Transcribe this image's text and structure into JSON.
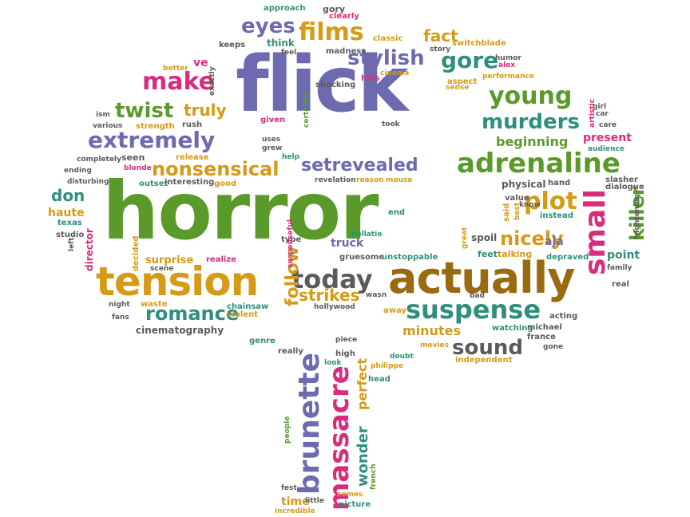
{
  "palette": {
    "purple": "#6e6ab0",
    "green": "#5a9a2a",
    "gold": "#d59a16",
    "magenta": "#d82c7d",
    "teal": "#2f8f7c",
    "gray": "#5a5a5a",
    "brown": "#9a6a10"
  },
  "words": [
    {
      "text": "flick",
      "color": "purple"
    },
    {
      "text": "horror",
      "color": "green"
    },
    {
      "text": "tension",
      "color": "gold"
    },
    {
      "text": "actually",
      "color": "brown"
    },
    {
      "text": "suspense",
      "color": "teal"
    },
    {
      "text": "adrenaline",
      "color": "green"
    },
    {
      "text": "extremely",
      "color": "purple"
    },
    {
      "text": "nonsensical",
      "color": "gold"
    },
    {
      "text": "setrevealed",
      "color": "purple"
    },
    {
      "text": "murders",
      "color": "teal"
    },
    {
      "text": "young",
      "color": "green"
    },
    {
      "text": "stylish",
      "color": "purple"
    },
    {
      "text": "gore",
      "color": "teal"
    },
    {
      "text": "films",
      "color": "gold"
    },
    {
      "text": "eyes",
      "color": "purple"
    },
    {
      "text": "make",
      "color": "magenta"
    },
    {
      "text": "twist",
      "color": "green"
    },
    {
      "text": "truly",
      "color": "gold"
    },
    {
      "text": "romance",
      "color": "teal"
    },
    {
      "text": "today",
      "color": "gray"
    },
    {
      "text": "strikes",
      "color": "gold"
    },
    {
      "text": "sound",
      "color": "gray"
    },
    {
      "text": "plot",
      "color": "gold"
    },
    {
      "text": "nicely",
      "color": "gold"
    },
    {
      "text": "small",
      "color": "magenta"
    },
    {
      "text": "killer",
      "color": "green"
    },
    {
      "text": "fact",
      "color": "gold"
    },
    {
      "text": "beginning",
      "color": "green"
    },
    {
      "text": "present",
      "color": "magenta"
    },
    {
      "text": "don",
      "color": "teal"
    },
    {
      "text": "haute",
      "color": "gold"
    },
    {
      "text": "follow",
      "color": "gold"
    },
    {
      "text": "minutes",
      "color": "gold"
    },
    {
      "text": "brunette",
      "color": "purple"
    },
    {
      "text": "massacre",
      "color": "magenta"
    },
    {
      "text": "perfect",
      "color": "gold"
    },
    {
      "text": "wonder",
      "color": "teal"
    },
    {
      "text": "cinematography",
      "color": "gray"
    },
    {
      "text": "time",
      "color": "gold"
    },
    {
      "text": "physical",
      "color": "gray"
    },
    {
      "text": "director",
      "color": "magenta"
    },
    {
      "text": "point",
      "color": "teal"
    },
    {
      "text": "surprise",
      "color": "gold"
    },
    {
      "text": "truck",
      "color": "purple"
    },
    {
      "text": "hand",
      "color": "gray"
    },
    {
      "text": "aja",
      "color": "purple"
    },
    {
      "text": "clearly",
      "color": "magenta"
    },
    {
      "text": "gory",
      "color": "gray"
    },
    {
      "text": "approach",
      "color": "teal"
    },
    {
      "text": "classic",
      "color": "gold"
    },
    {
      "text": "madness",
      "color": "gray"
    },
    {
      "text": "keeps",
      "color": "gray"
    },
    {
      "text": "think",
      "color": "teal"
    },
    {
      "text": "feel",
      "color": "gray"
    },
    {
      "text": "better",
      "color": "gold"
    },
    {
      "text": "ve",
      "color": "magenta"
    },
    {
      "text": "exactly",
      "color": "gray"
    },
    {
      "text": "switchblade",
      "color": "gold"
    },
    {
      "text": "story",
      "color": "gray"
    },
    {
      "text": "humor",
      "color": "gray"
    },
    {
      "text": "alex",
      "color": "magenta"
    },
    {
      "text": "cinema",
      "color": "gold"
    },
    {
      "text": "hills",
      "color": "magenta"
    },
    {
      "text": "aspect",
      "color": "gold"
    },
    {
      "text": "sense",
      "color": "gold"
    },
    {
      "text": "performance",
      "color": "gold"
    },
    {
      "text": "shocking",
      "color": "gray"
    },
    {
      "text": "certainly",
      "color": "green"
    },
    {
      "text": "given",
      "color": "magenta"
    },
    {
      "text": "uses",
      "color": "gray"
    },
    {
      "text": "grew",
      "color": "gray"
    },
    {
      "text": "help",
      "color": "teal"
    },
    {
      "text": "took",
      "color": "gray"
    },
    {
      "text": "ism",
      "color": "gray"
    },
    {
      "text": "various",
      "color": "gray"
    },
    {
      "text": "strength",
      "color": "gold"
    },
    {
      "text": "rush",
      "color": "gray"
    },
    {
      "text": "artistic",
      "color": "magenta"
    },
    {
      "text": "girl",
      "color": "gray"
    },
    {
      "text": "car",
      "color": "gray"
    },
    {
      "text": "care",
      "color": "gray"
    },
    {
      "text": "audience",
      "color": "teal"
    },
    {
      "text": "release",
      "color": "gold"
    },
    {
      "text": "seen",
      "color": "gray"
    },
    {
      "text": "completely",
      "color": "gray"
    },
    {
      "text": "blonde",
      "color": "magenta"
    },
    {
      "text": "ending",
      "color": "gray"
    },
    {
      "text": "disturbing",
      "color": "gray"
    },
    {
      "text": "outset",
      "color": "teal"
    },
    {
      "text": "interesting",
      "color": "gray"
    },
    {
      "text": "good",
      "color": "gold"
    },
    {
      "text": "revelation",
      "color": "gray"
    },
    {
      "text": "reason",
      "color": "gold"
    },
    {
      "text": "mouse",
      "color": "gold"
    },
    {
      "text": "slasher",
      "color": "gray"
    },
    {
      "text": "dialogue",
      "color": "gray"
    },
    {
      "text": "value",
      "color": "gray"
    },
    {
      "text": "said",
      "color": "gold"
    },
    {
      "text": "best",
      "color": "gold"
    },
    {
      "text": "know",
      "color": "gray"
    },
    {
      "text": "instead",
      "color": "teal"
    },
    {
      "text": "frightening",
      "color": "gray"
    },
    {
      "text": "texas",
      "color": "teal"
    },
    {
      "text": "studio",
      "color": "gray"
    },
    {
      "text": "left",
      "color": "gray"
    },
    {
      "text": "end",
      "color": "teal"
    },
    {
      "text": "pellatio",
      "color": "teal"
    },
    {
      "text": "decided",
      "color": "gold"
    },
    {
      "text": "type",
      "color": "gray"
    },
    {
      "text": "suspenseful",
      "color": "magenta"
    },
    {
      "text": "gruesome",
      "color": "gray"
    },
    {
      "text": "unstoppable",
      "color": "teal"
    },
    {
      "text": "great",
      "color": "gold"
    },
    {
      "text": "spoil",
      "color": "gray"
    },
    {
      "text": "feet",
      "color": "teal"
    },
    {
      "text": "talking",
      "color": "gold"
    },
    {
      "text": "depraved",
      "color": "teal"
    },
    {
      "text": "family",
      "color": "gray"
    },
    {
      "text": "real",
      "color": "gray"
    },
    {
      "text": "realize",
      "color": "magenta"
    },
    {
      "text": "scene",
      "color": "gray"
    },
    {
      "text": "night",
      "color": "gray"
    },
    {
      "text": "waste",
      "color": "gold"
    },
    {
      "text": "fans",
      "color": "gray"
    },
    {
      "text": "chainsaw",
      "color": "teal"
    },
    {
      "text": "violent",
      "color": "gold"
    },
    {
      "text": "hollywood",
      "color": "gray"
    },
    {
      "text": "wasn",
      "color": "gray"
    },
    {
      "text": "away",
      "color": "gold"
    },
    {
      "text": "bad",
      "color": "gray"
    },
    {
      "text": "acting",
      "color": "gray"
    },
    {
      "text": "watching",
      "color": "teal"
    },
    {
      "text": "michael",
      "color": "gray"
    },
    {
      "text": "france",
      "color": "gray"
    },
    {
      "text": "gone",
      "color": "gray"
    },
    {
      "text": "genre",
      "color": "teal"
    },
    {
      "text": "piece",
      "color": "gray"
    },
    {
      "text": "really",
      "color": "gray"
    },
    {
      "text": "high",
      "color": "gray"
    },
    {
      "text": "look",
      "color": "teal"
    },
    {
      "text": "philippe",
      "color": "gold"
    },
    {
      "text": "doubt",
      "color": "teal"
    },
    {
      "text": "movies",
      "color": "gold"
    },
    {
      "text": "independent",
      "color": "gold"
    },
    {
      "text": "head",
      "color": "teal"
    },
    {
      "text": "people",
      "color": "green"
    },
    {
      "text": "french",
      "color": "green"
    },
    {
      "text": "fest",
      "color": "gray"
    },
    {
      "text": "little",
      "color": "gray"
    },
    {
      "text": "comes",
      "color": "gold"
    },
    {
      "text": "picture",
      "color": "teal"
    },
    {
      "text": "incredible",
      "color": "gold"
    }
  ]
}
